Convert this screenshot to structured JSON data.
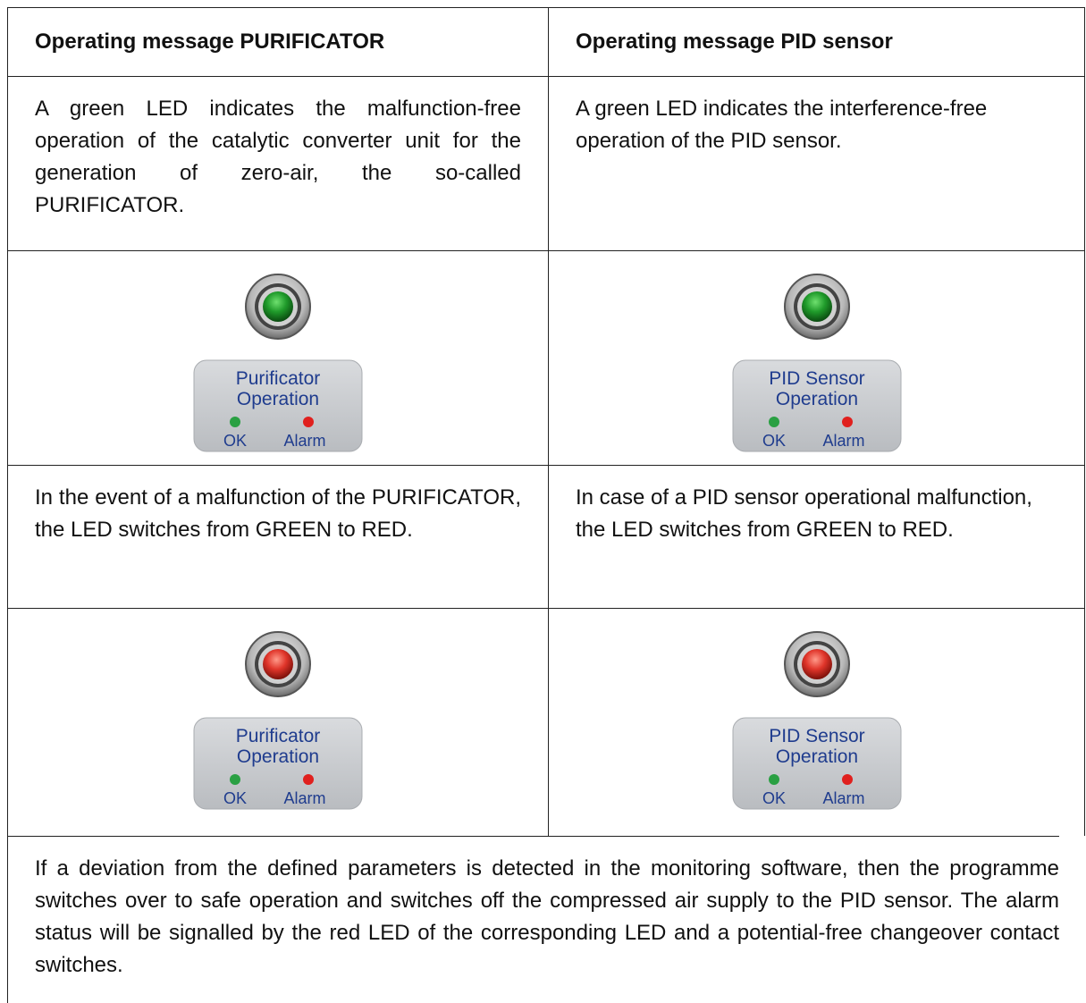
{
  "table": {
    "headers": [
      "Operating message PURIFICATOR",
      "Operating message PID sensor"
    ],
    "rows": [
      [
        "A green LED indicates the malfunction-free operation of the catalytic converter unit for the generation of zero-air, the so-called PURIFICATOR.",
        "A green LED indicates the interference-free operation of the PID sensor."
      ],
      [
        {
          "title": [
            "Purificator",
            "Operation"
          ],
          "ok": "OK",
          "alarm": "Alarm"
        },
        {
          "title": [
            "PID Sensor",
            "Operation"
          ],
          "ok": "OK",
          "alarm": "Alarm"
        }
      ],
      [
        "In the event of a malfunction of the PURIFICATOR, the LED switches from GREEN to RED.",
        "In case of a PID sensor operational malfunction, the LED switches from GREEN to RED."
      ],
      [
        {
          "title": [
            "Purificator",
            "Operation"
          ],
          "ok": "OK",
          "alarm": "Alarm"
        },
        {
          "title": [
            "PID Sensor",
            "Operation"
          ],
          "ok": "OK",
          "alarm": "Alarm"
        }
      ]
    ],
    "footer": "If a deviation from the defined parameters is detected in the monitoring software, then the programme switches over to safe operation and switches off the compressed air supply to the PID sensor. The alarm status will be signalled by the red LED of the corresponding LED and a potential-free changeover contact switches."
  }
}
